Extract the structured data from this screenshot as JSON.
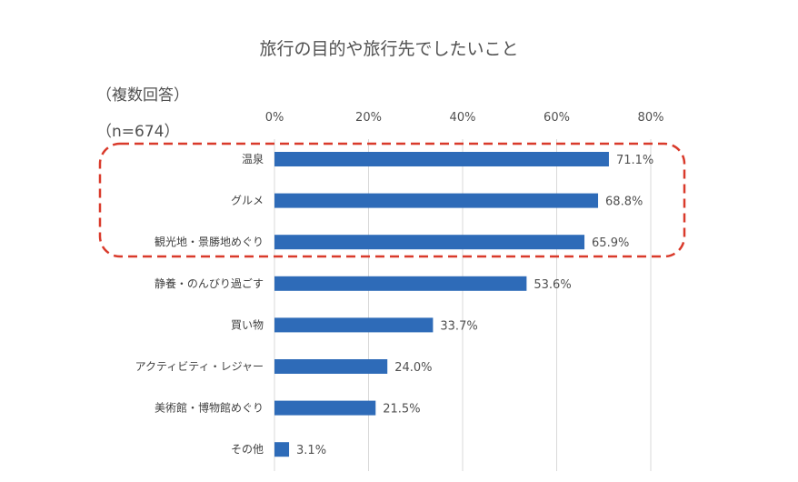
{
  "chart_data": {
    "type": "bar",
    "orientation": "horizontal",
    "title": "旅行の目的や旅行先でしたいこと",
    "notes": [
      "（複数回答）",
      "（n=674）"
    ],
    "categories": [
      "温泉",
      "グルメ",
      "観光地・景勝地めぐり",
      "静養・のんびり過ごす",
      "買い物",
      "アクティビティ・レジャー",
      "美術館・博物館めぐり",
      "その他"
    ],
    "values": [
      71.1,
      68.8,
      65.9,
      53.6,
      33.7,
      24.0,
      21.5,
      3.1
    ],
    "value_labels": [
      "71.1%",
      "68.8%",
      "65.9%",
      "53.6%",
      "33.7%",
      "24.0%",
      "21.5%",
      "3.1%"
    ],
    "xlim": [
      0,
      80
    ],
    "xticks": [
      0,
      20,
      40,
      60,
      80
    ],
    "xtick_labels": [
      "0%",
      "20%",
      "40%",
      "60%",
      "80%"
    ],
    "x_axis_position": "top",
    "grid": true,
    "bar_color": "#2E6BB8",
    "highlight": {
      "categories": [
        "温泉",
        "グルメ",
        "観光地・景勝地めぐり"
      ],
      "style": "dashed-rounded-box",
      "color": "#D93A2B"
    }
  }
}
